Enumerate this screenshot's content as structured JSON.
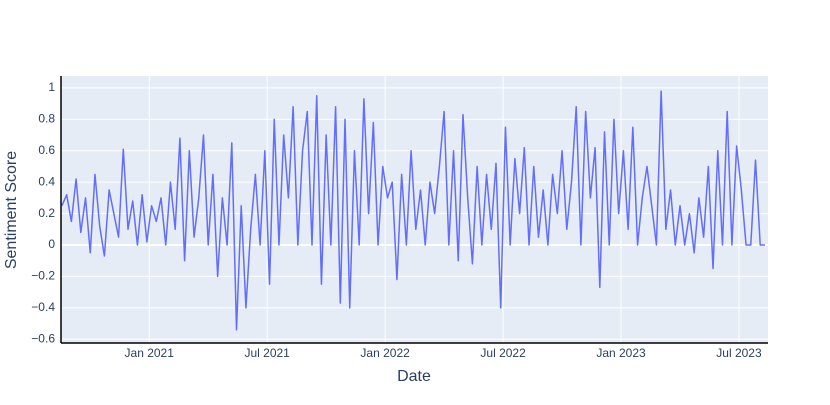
{
  "chart_data": {
    "type": "line",
    "x_label": "Date",
    "y_label": "Sentiment Score",
    "x": [
      2020.63,
      2020.65,
      2020.67,
      2020.69,
      2020.71,
      2020.73,
      2020.75,
      2020.77,
      2020.79,
      2020.81,
      2020.83,
      2020.85,
      2020.87,
      2020.89,
      2020.91,
      2020.93,
      2020.95,
      2020.97,
      2020.99,
      2021.01,
      2021.03,
      2021.05,
      2021.07,
      2021.09,
      2021.11,
      2021.13,
      2021.15,
      2021.17,
      2021.19,
      2021.21,
      2021.23,
      2021.25,
      2021.27,
      2021.29,
      2021.31,
      2021.33,
      2021.35,
      2021.37,
      2021.39,
      2021.41,
      2021.43,
      2021.45,
      2021.47,
      2021.49,
      2021.51,
      2021.53,
      2021.55,
      2021.57,
      2021.59,
      2021.61,
      2021.63,
      2021.65,
      2021.67,
      2021.69,
      2021.71,
      2021.73,
      2021.75,
      2021.77,
      2021.79,
      2021.81,
      2021.83,
      2021.85,
      2021.87,
      2021.89,
      2021.91,
      2021.93,
      2021.95,
      2021.97,
      2021.99,
      2022.01,
      2022.03,
      2022.05,
      2022.07,
      2022.09,
      2022.11,
      2022.13,
      2022.15,
      2022.17,
      2022.19,
      2022.21,
      2022.23,
      2022.25,
      2022.27,
      2022.29,
      2022.31,
      2022.33,
      2022.35,
      2022.37,
      2022.39,
      2022.41,
      2022.43,
      2022.45,
      2022.47,
      2022.49,
      2022.51,
      2022.53,
      2022.55,
      2022.57,
      2022.59,
      2022.61,
      2022.63,
      2022.65,
      2022.67,
      2022.69,
      2022.71,
      2022.73,
      2022.75,
      2022.77,
      2022.79,
      2022.81,
      2022.83,
      2022.85,
      2022.87,
      2022.89,
      2022.91,
      2022.93,
      2022.95,
      2022.97,
      2022.99,
      2023.01,
      2023.03,
      2023.05,
      2023.07,
      2023.09,
      2023.11,
      2023.13,
      2023.15,
      2023.17,
      2023.19,
      2023.21,
      2023.23,
      2023.25,
      2023.27,
      2023.29,
      2023.31,
      2023.33,
      2023.35,
      2023.37,
      2023.39,
      2023.41,
      2023.43,
      2023.45,
      2023.47,
      2023.49,
      2023.51,
      2023.53,
      2023.55,
      2023.57,
      2023.59,
      2023.61
    ],
    "series": [
      {
        "color": "#636efa",
        "values": [
          0.25,
          0.32,
          0.15,
          0.42,
          0.08,
          0.3,
          -0.05,
          0.45,
          0.12,
          -0.07,
          0.35,
          0.2,
          0.05,
          0.61,
          0.1,
          0.28,
          0,
          0.32,
          0.02,
          0.25,
          0.15,
          0.3,
          0,
          0.4,
          0.1,
          0.68,
          -0.1,
          0.6,
          0.05,
          0.3,
          0.7,
          0,
          0.45,
          -0.2,
          0.3,
          0,
          0.65,
          -0.54,
          0.25,
          -0.4,
          0.1,
          0.45,
          0,
          0.6,
          -0.25,
          0.8,
          0,
          0.7,
          0.3,
          0.88,
          0,
          0.6,
          0.85,
          0,
          0.95,
          -0.25,
          0.7,
          0,
          0.88,
          -0.37,
          0.8,
          -0.4,
          0.6,
          0,
          0.93,
          0.2,
          0.78,
          0,
          0.5,
          0.3,
          0.4,
          -0.22,
          0.45,
          0,
          0.6,
          0.1,
          0.35,
          0,
          0.4,
          0.2,
          0.5,
          0.85,
          0,
          0.6,
          -0.1,
          0.83,
          0.3,
          -0.12,
          0.5,
          0,
          0.45,
          0.1,
          0.52,
          -0.4,
          0.75,
          0,
          0.55,
          0.2,
          0.62,
          0,
          0.5,
          0.05,
          0.35,
          0,
          0.45,
          0.2,
          0.6,
          0.1,
          0.4,
          0.88,
          0,
          0.85,
          0.3,
          0.62,
          -0.27,
          0.72,
          0,
          0.8,
          0.2,
          0.6,
          0.1,
          0.75,
          0,
          0.3,
          0.5,
          0.25,
          0,
          0.98,
          0.1,
          0.35,
          0,
          0.25,
          0,
          0.2,
          -0.05,
          0.3,
          0.05,
          0.5,
          -0.15,
          0.6,
          0,
          0.85,
          0,
          0.63,
          0.35,
          0,
          0,
          0.54,
          0,
          0
        ]
      }
    ],
    "xlim": [
      2020.626,
      2023.623
    ],
    "xticks": [
      {
        "value": 2021.0,
        "label": "Jan 2021"
      },
      {
        "value": 2021.5,
        "label": "Jul 2021"
      },
      {
        "value": 2022.0,
        "label": "Jan 2022"
      },
      {
        "value": 2022.5,
        "label": "Jul 2022"
      },
      {
        "value": 2023.0,
        "label": "Jan 2023"
      },
      {
        "value": 2023.5,
        "label": "Jul 2023"
      }
    ],
    "ylim": [
      -0.624,
      1.076
    ],
    "yticks": [
      {
        "value": -0.6,
        "label": "−0.6"
      },
      {
        "value": -0.4,
        "label": "−0.4"
      },
      {
        "value": -0.2,
        "label": "−0.2"
      },
      0,
      0.2,
      0.4,
      0.6,
      0.8,
      1
    ],
    "grid": true
  }
}
